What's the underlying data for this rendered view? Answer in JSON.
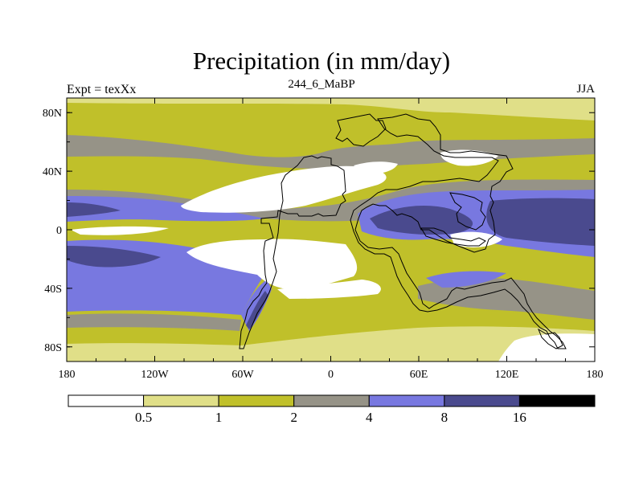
{
  "title": "Precipitation (in mm/day)",
  "left_label": "Expt = texXx",
  "center_label": "244_6_MaBP",
  "right_label": "JJA",
  "lon_ticks": [
    "180",
    "120W",
    "60W",
    "0",
    "60E",
    "120E",
    "180"
  ],
  "lat_ticks": [
    "80N",
    "40N",
    "0",
    "40S",
    "80S"
  ],
  "colorbar": {
    "labels": [
      "0.5",
      "1",
      "2",
      "4",
      "8",
      "16"
    ],
    "colors": [
      "#ffffff",
      "#e0df88",
      "#c0c02a",
      "#969387",
      "#7878e0",
      "#4a4a8e",
      "#000000"
    ]
  }
}
